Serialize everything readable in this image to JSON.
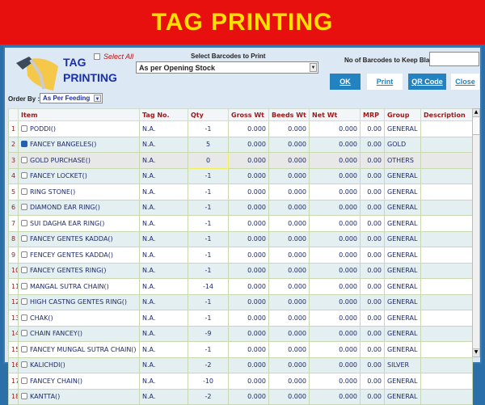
{
  "banner": {
    "title": "TAG PRINTING"
  },
  "header": {
    "title_line1": "TAG",
    "title_line2": "PRINTING",
    "select_all": "Select All",
    "select_barcodes_label": "Select Barcodes to Print",
    "select_barcodes_value": "As per Opening Stock",
    "keep_blank_label": "No of Barcodes to Keep Blank",
    "keep_blank_value": "",
    "order_by_label": "Order By :",
    "order_by_value": "As Per Feeding"
  },
  "buttons": {
    "ok": "OK",
    "print": "Print",
    "qr": "QR Code",
    "close": "Close"
  },
  "colors": {
    "banner": "#e8100f",
    "banner_text": "#ffe000",
    "button": "#2383c0"
  },
  "table": {
    "columns": [
      "",
      "Item",
      "Tag No.",
      "Qty",
      "Gross Wt",
      "Beeds Wt",
      "Net Wt",
      "MRP",
      "Group",
      "Description"
    ],
    "rows": [
      [
        "1",
        "PODDI()",
        "N.A.",
        "-1",
        "0.000",
        "0.000",
        "0.000",
        "0.00",
        "GENERAL",
        "",
        false
      ],
      [
        "2",
        "FANCEY BANGELES()",
        "N.A.",
        "5",
        "0.000",
        "0.000",
        "0.000",
        "0.00",
        "GOLD",
        "",
        true
      ],
      [
        "3",
        "GOLD PURCHASE()",
        "N.A.",
        "0",
        "0.000",
        "0.000",
        "0.000",
        "0.00",
        "OTHERS",
        "",
        false
      ],
      [
        "4",
        "FANCEY LOCKET()",
        "N.A.",
        "-1",
        "0.000",
        "0.000",
        "0.000",
        "0.00",
        "GENERAL",
        "",
        false
      ],
      [
        "5",
        "RING STONE()",
        "N.A.",
        "-1",
        "0.000",
        "0.000",
        "0.000",
        "0.00",
        "GENERAL",
        "",
        false
      ],
      [
        "6",
        "DIAMOND EAR RING()",
        "N.A.",
        "-1",
        "0.000",
        "0.000",
        "0.000",
        "0.00",
        "GENERAL",
        "",
        false
      ],
      [
        "7",
        "SUI DAGHA EAR RING()",
        "N.A.",
        "-1",
        "0.000",
        "0.000",
        "0.000",
        "0.00",
        "GENERAL",
        "",
        false
      ],
      [
        "8",
        "FANCEY GENTES KADDA()",
        "N.A.",
        "-1",
        "0.000",
        "0.000",
        "0.000",
        "0.00",
        "GENERAL",
        "",
        false
      ],
      [
        "9",
        "FENCEY GENTES KADDA()",
        "N.A.",
        "-1",
        "0.000",
        "0.000",
        "0.000",
        "0.00",
        "GENERAL",
        "",
        false
      ],
      [
        "10",
        "FANCEY GENTES RING()",
        "N.A.",
        "-1",
        "0.000",
        "0.000",
        "0.000",
        "0.00",
        "GENERAL",
        "",
        false
      ],
      [
        "11",
        "MANGAL SUTRA CHAIN()",
        "N.A.",
        "-14",
        "0.000",
        "0.000",
        "0.000",
        "0.00",
        "GENERAL",
        "",
        false
      ],
      [
        "12",
        "HIGH CASTNG GENTES RING()",
        "N.A.",
        "-1",
        "0.000",
        "0.000",
        "0.000",
        "0.00",
        "GENERAL",
        "",
        false
      ],
      [
        "13",
        "CHAK()",
        "N.A.",
        "-1",
        "0.000",
        "0.000",
        "0.000",
        "0.00",
        "GENERAL",
        "",
        false
      ],
      [
        "14",
        "CHAIN FANCEY()",
        "N.A.",
        "-9",
        "0.000",
        "0.000",
        "0.000",
        "0.00",
        "GENERAL",
        "",
        false
      ],
      [
        "15",
        "FANCEY MUNGAL SUTRA CHAIN()",
        "N.A.",
        "-1",
        "0.000",
        "0.000",
        "0.000",
        "0.00",
        "GENERAL",
        "",
        false
      ],
      [
        "16",
        "KALICHDI()",
        "N.A.",
        "-2",
        "0.000",
        "0.000",
        "0.000",
        "0.00",
        "SILVER",
        "",
        false
      ],
      [
        "17",
        "FANCEY CHAIN()",
        "N.A.",
        "-10",
        "0.000",
        "0.000",
        "0.000",
        "0.00",
        "GENERAL",
        "",
        false
      ],
      [
        "18",
        "KANTTA()",
        "N.A.",
        "-2",
        "0.000",
        "0.000",
        "0.000",
        "0.00",
        "GENERAL",
        "",
        false
      ]
    ]
  }
}
